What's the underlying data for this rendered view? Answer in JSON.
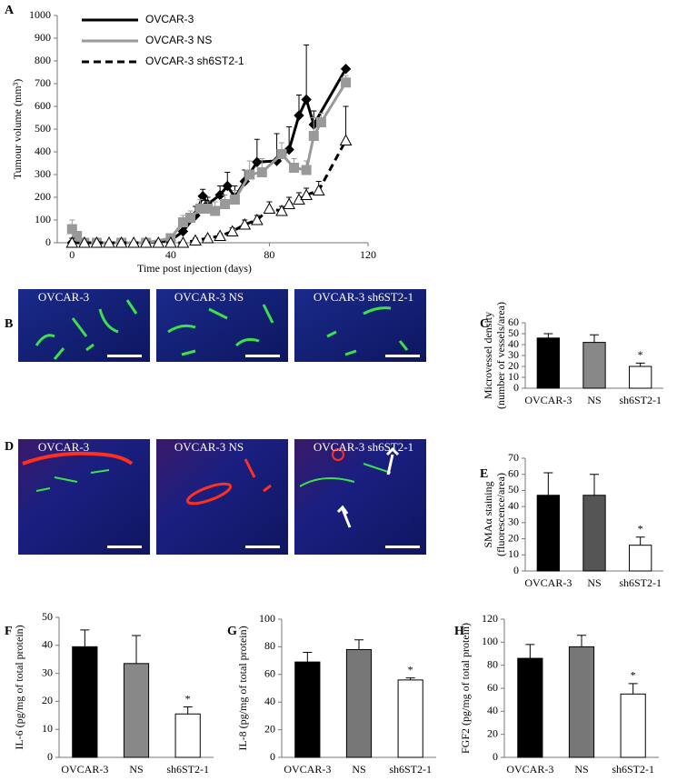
{
  "chart_data": [
    {
      "type": "line",
      "panel": "A",
      "ylabel": "Tumour volume (mm³)",
      "xlabel": "Time post injection (days)",
      "xlim": [
        -6,
        120
      ],
      "xticks": [
        0,
        40,
        80,
        120
      ],
      "ylim": [
        0,
        1000
      ],
      "yticks": [
        0,
        100,
        200,
        300,
        400,
        500,
        600,
        700,
        800,
        900,
        1000
      ],
      "series": [
        {
          "name": "OVCAR-3",
          "color": "#000000",
          "line_style": "solid",
          "marker": "diamond",
          "marker_fill": "#000000",
          "x": [
            0,
            5,
            10,
            20,
            30,
            40,
            45,
            50,
            53,
            55,
            60,
            63,
            66,
            70,
            75,
            83,
            88,
            92,
            95,
            98,
            111
          ],
          "values": [
            0,
            0,
            0,
            0,
            0,
            10,
            50,
            120,
            205,
            170,
            210,
            250,
            200,
            270,
            355,
            360,
            410,
            560,
            630,
            520,
            765
          ],
          "errors": [
            0,
            0,
            0,
            0,
            0,
            10,
            20,
            40,
            30,
            30,
            40,
            60,
            50,
            50,
            100,
            120,
            100,
            90,
            240,
            60,
            0
          ]
        },
        {
          "name": "OVCAR-3 NS",
          "color": "#999999",
          "line_style": "solid",
          "marker": "square",
          "marker_fill": "#999999",
          "x": [
            0,
            2,
            5,
            10,
            20,
            30,
            40,
            45,
            48,
            52,
            55,
            58,
            62,
            66,
            72,
            77,
            85,
            90,
            95,
            98,
            101,
            111
          ],
          "values": [
            60,
            30,
            0,
            0,
            0,
            0,
            20,
            90,
            110,
            150,
            150,
            140,
            170,
            190,
            300,
            310,
            390,
            330,
            320,
            470,
            530,
            705
          ],
          "errors": [
            40,
            20,
            0,
            0,
            0,
            0,
            20,
            30,
            30,
            40,
            30,
            40,
            40,
            40,
            60,
            60,
            50,
            40,
            40,
            80,
            40,
            30
          ]
        },
        {
          "name": "OVCAR-3 sh6ST2-1",
          "color": "#000000",
          "line_style": "dashed",
          "marker": "triangle",
          "marker_fill": "#ffffff",
          "x": [
            0,
            5,
            10,
            15,
            20,
            25,
            30,
            35,
            40,
            45,
            50,
            55,
            60,
            65,
            70,
            75,
            80,
            85,
            88,
            92,
            95,
            100,
            111
          ],
          "values": [
            0,
            0,
            0,
            0,
            0,
            0,
            0,
            0,
            0,
            0,
            10,
            20,
            30,
            50,
            80,
            100,
            150,
            140,
            170,
            190,
            210,
            230,
            450
          ],
          "errors": [
            20,
            0,
            0,
            0,
            0,
            0,
            0,
            0,
            0,
            0,
            10,
            10,
            10,
            15,
            20,
            20,
            30,
            20,
            30,
            30,
            30,
            40,
            150
          ]
        }
      ]
    },
    {
      "type": "bar",
      "panel": "C",
      "ylabel": [
        "Microvessel density",
        "(number of vessels/area)"
      ],
      "categories": [
        "OVCAR-3",
        "NS",
        "sh6ST2-1"
      ],
      "values": [
        46,
        42,
        20
      ],
      "errors": [
        4,
        7,
        3
      ],
      "colors": [
        "#000000",
        "#888888",
        "#ffffff"
      ],
      "ylim": [
        0,
        60
      ],
      "yticks": [
        0,
        10,
        20,
        30,
        40,
        50,
        60
      ],
      "annotation": "*"
    },
    {
      "type": "bar",
      "panel": "E",
      "ylabel": [
        "SMAα staining",
        "(fluorescence/area)"
      ],
      "categories": [
        "OVCAR-3",
        "NS",
        "sh6ST2-1"
      ],
      "values": [
        47,
        47,
        16
      ],
      "errors": [
        14,
        13,
        5
      ],
      "colors": [
        "#000000",
        "#555555",
        "#ffffff"
      ],
      "ylim": [
        0,
        70
      ],
      "yticks": [
        0,
        10,
        20,
        30,
        40,
        50,
        60,
        70
      ],
      "annotation": "*"
    },
    {
      "type": "bar",
      "panel": "F",
      "ylabel": [
        "IL-6 (pg/mg of total protein)"
      ],
      "categories": [
        "OVCAR-3",
        "NS",
        "sh6ST2-1"
      ],
      "values": [
        39.5,
        33.5,
        15.5
      ],
      "errors": [
        6,
        10,
        2.5
      ],
      "colors": [
        "#000000",
        "#888888",
        "#ffffff"
      ],
      "ylim": [
        0,
        50
      ],
      "yticks": [
        0,
        10,
        20,
        30,
        40,
        50
      ],
      "annotation": "*"
    },
    {
      "type": "bar",
      "panel": "G",
      "ylabel": [
        "IL-8 (pg/mg of total protein)"
      ],
      "categories": [
        "OVCAR-3",
        "NS",
        "sh6ST2-1"
      ],
      "values": [
        69,
        78,
        56
      ],
      "errors": [
        7,
        7,
        1.5
      ],
      "colors": [
        "#000000",
        "#777777",
        "#ffffff"
      ],
      "ylim": [
        0,
        100
      ],
      "yticks": [
        0,
        20,
        40,
        60,
        80,
        100
      ],
      "annotation": "*"
    },
    {
      "type": "bar",
      "panel": "H",
      "ylabel": [
        "FGF2 (pg/mg of total protein)"
      ],
      "categories": [
        "OVCAR-3",
        "NS",
        "sh6ST2-1"
      ],
      "values": [
        86,
        96,
        55
      ],
      "errors": [
        12,
        10,
        9
      ],
      "colors": [
        "#000000",
        "#777777",
        "#ffffff"
      ],
      "ylim": [
        0,
        120
      ],
      "yticks": [
        0,
        20,
        40,
        60,
        80,
        100,
        120
      ],
      "annotation": "*"
    }
  ],
  "image_panels": [
    {
      "panel": "B",
      "labels": [
        "OVCAR-3",
        "OVCAR-3 NS",
        "OVCAR-3 sh6ST2-1"
      ]
    },
    {
      "panel": "D",
      "labels": [
        "OVCAR-3",
        "OVCAR-3 NS",
        "OVCAR-3 sh6ST2-1"
      ]
    }
  ]
}
